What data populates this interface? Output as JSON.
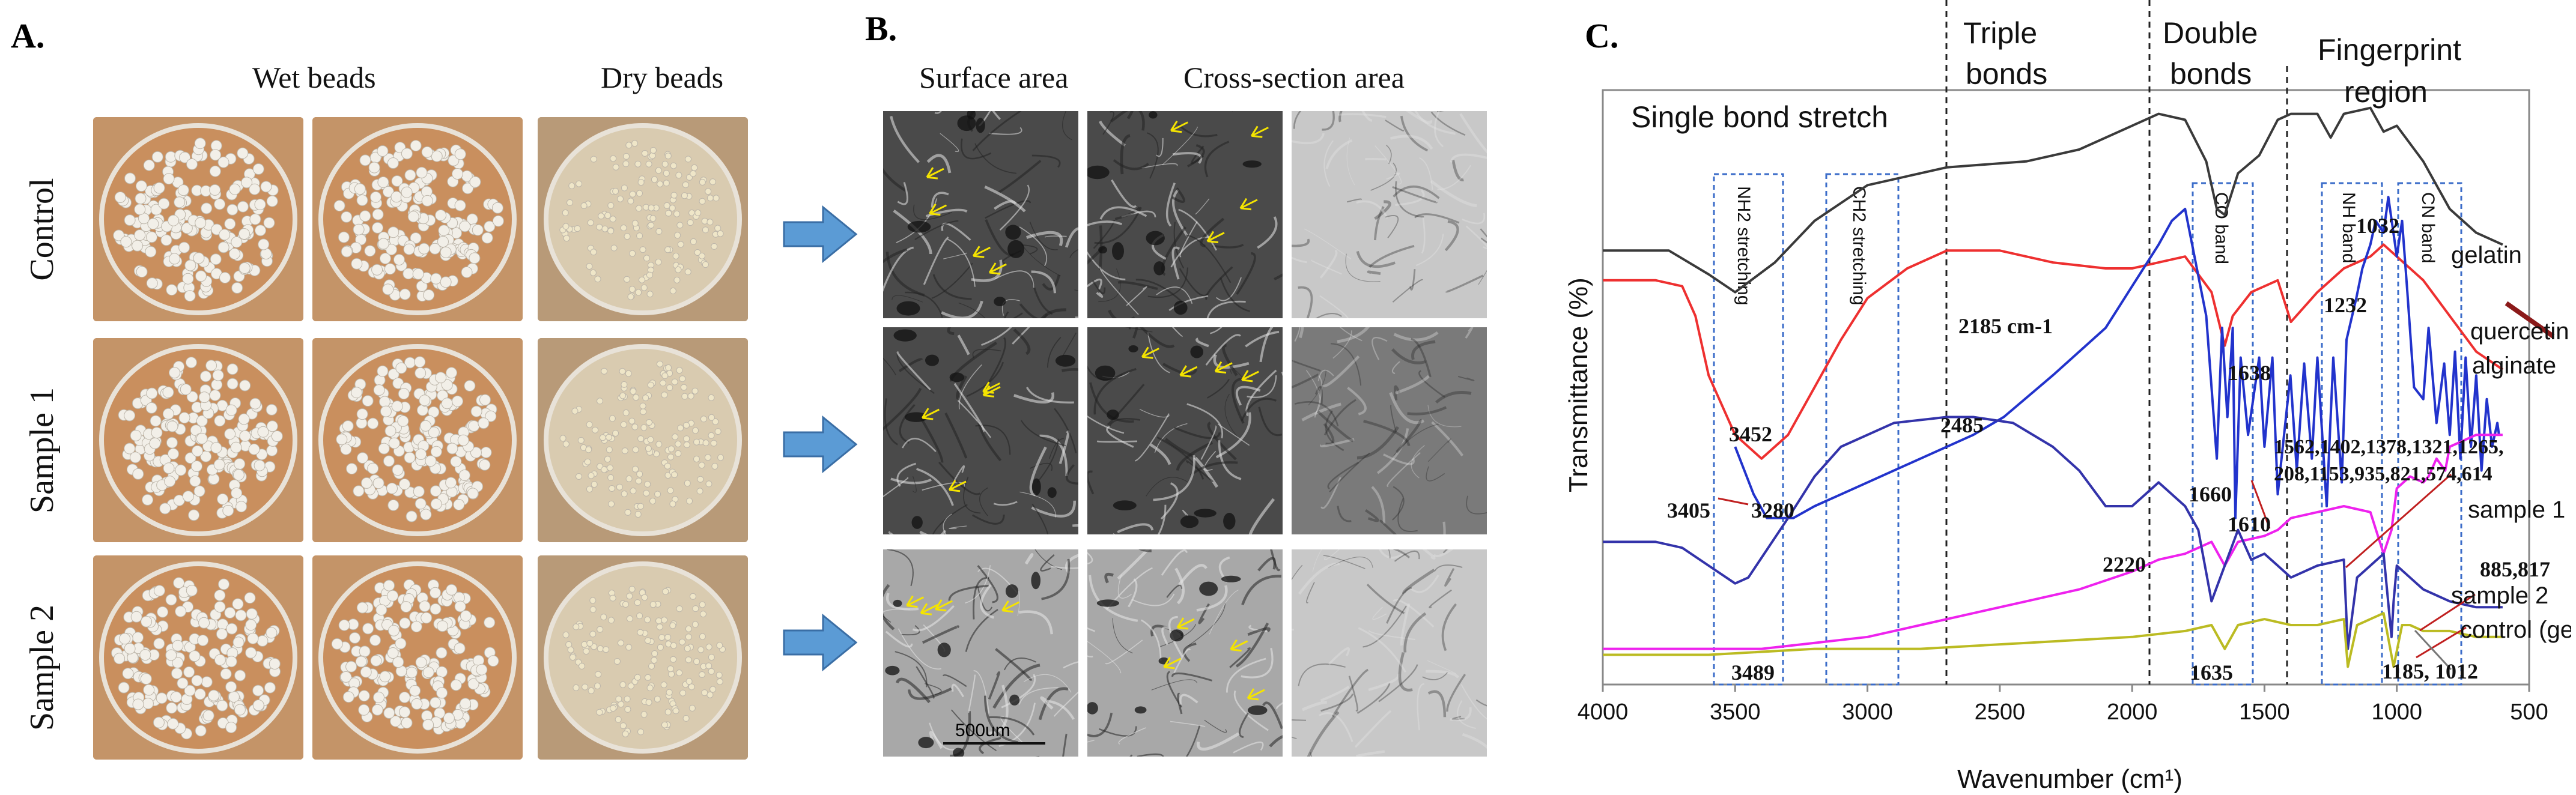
{
  "panelA": {
    "letter": "A.",
    "col_headers": [
      "Wet beads",
      "Dry beads"
    ],
    "row_labels": [
      "Control",
      "Sample 1",
      "Sample 2"
    ]
  },
  "panelB": {
    "letter": "B.",
    "col_headers": [
      "Surface area",
      "Cross-section area"
    ],
    "scale_label": "500um"
  },
  "panelC": {
    "letter": "C.",
    "region_labels": {
      "single": "Single bond stretch",
      "triple_1": "Triple",
      "triple_2": "bonds",
      "double_1": "Double",
      "double_2": "bonds",
      "finger_1": "Fingerprint",
      "finger_2": "region"
    },
    "band_labels": [
      "NH2 stretching",
      "CH2 stretching",
      "CO band",
      "NH band",
      "CN band"
    ],
    "peak_labels": [
      "3452",
      "3405",
      "3280",
      "2485",
      "2185 cm-1",
      "1638",
      "1660",
      "1610",
      "1032",
      "1232",
      "2220",
      "3489",
      "1635",
      "1185, 1012",
      "885,817"
    ],
    "multi_peak_line1": "1562,1402,1378,1321,1265,",
    "multi_peak_line2": "208,1153,935,821,574,614",
    "series_labels": [
      "gelatin",
      "quercetin",
      "alginate",
      "sample 1",
      "sample 2",
      "control (gel-alg)"
    ],
    "colors": {
      "gelatin": "#3a3a3a",
      "quercetin": "#2233cc",
      "alginate": "#ee3030",
      "sample1": "#ee22ee",
      "sample2": "#3333aa",
      "control": "#bbbb22",
      "callout": "#8b1a1a"
    }
  },
  "chart_data": {
    "type": "line",
    "xlabel": "Wavenumber (cm¹)",
    "ylabel": "Transmittance (%)",
    "xlim": [
      4000,
      500
    ],
    "x_ticks": [
      "4000",
      "3500",
      "3000",
      "2500",
      "2000",
      "1500",
      "1000",
      "500"
    ],
    "x_tick_values": [
      4000,
      3500,
      3000,
      2500,
      2000,
      1500,
      1000,
      500
    ],
    "ylim": [
      0,
      100
    ],
    "grid": false,
    "series": [
      {
        "name": "gelatin",
        "x": [
          4000,
          3750,
          3600,
          3500,
          3350,
          3200,
          3000,
          2700,
          2400,
          2200,
          2000,
          1900,
          1800,
          1720,
          1680,
          1650,
          1600,
          1520,
          1450,
          1400,
          1300,
          1250,
          1200,
          1100,
          1050,
          1000,
          900,
          800,
          700,
          600
        ],
        "y": [
          73,
          73,
          69,
          66,
          71,
          78,
          84,
          87,
          88,
          90,
          94,
          96,
          95,
          88,
          80,
          79,
          86,
          89,
          95,
          96,
          96,
          92,
          96,
          97,
          93,
          94,
          88,
          80,
          76,
          74
        ]
      },
      {
        "name": "alginate",
        "x": [
          4000,
          3800,
          3700,
          3650,
          3600,
          3500,
          3400,
          3300,
          3200,
          3100,
          3000,
          2850,
          2700,
          2500,
          2300,
          2100,
          2000,
          1900,
          1800,
          1700,
          1650,
          1620,
          1550,
          1450,
          1400,
          1300,
          1200,
          1100,
          1050,
          1000,
          900,
          800,
          700,
          600
        ],
        "y": [
          68,
          68,
          67,
          62,
          52,
          42,
          38,
          42,
          50,
          58,
          65,
          70,
          73,
          73,
          71,
          70,
          70,
          71,
          72,
          66,
          57,
          62,
          66,
          68,
          61,
          66,
          70,
          72,
          74,
          72,
          68,
          62,
          56,
          53
        ]
      },
      {
        "name": "quercetin",
        "x": [
          3500,
          3430,
          3380,
          3280,
          3200,
          3000,
          2800,
          2600,
          2485,
          2300,
          2100,
          2000,
          1900,
          1850,
          1800,
          1720,
          1680,
          1660,
          1640,
          1620,
          1610,
          1590,
          1562,
          1520,
          1500,
          1470,
          1450,
          1402,
          1378,
          1350,
          1321,
          1300,
          1265,
          1240,
          1208,
          1190,
          1153,
          1130,
          1100,
          1080,
          1050,
          1032,
          1000,
          980,
          960,
          935,
          900,
          880,
          850,
          821,
          800,
          780,
          760,
          740,
          720,
          700,
          680,
          660,
          640,
          620,
          614
        ],
        "y": [
          40,
          32,
          28,
          28,
          30,
          34,
          38,
          42,
          45,
          52,
          60,
          67,
          74,
          78,
          80,
          62,
          38,
          60,
          45,
          60,
          28,
          55,
          42,
          55,
          40,
          55,
          32,
          52,
          36,
          54,
          38,
          55,
          30,
          55,
          34,
          58,
          65,
          70,
          74,
          78,
          76,
          82,
          72,
          78,
          66,
          50,
          48,
          60,
          44,
          54,
          42,
          56,
          38,
          55,
          40,
          52,
          36,
          48,
          40,
          44,
          42
        ]
      },
      {
        "name": "sample 1",
        "x": [
          4000,
          3800,
          3600,
          3400,
          3200,
          3000,
          2800,
          2600,
          2400,
          2200,
          2000,
          1900,
          1800,
          1700,
          1650,
          1600,
          1500,
          1450,
          1400,
          1300,
          1200,
          1100,
          1050,
          1020,
          1000,
          950,
          900,
          880,
          850,
          817,
          800,
          700,
          600
        ],
        "y": [
          6,
          6,
          6,
          6,
          7,
          8,
          10,
          12,
          14,
          16,
          19,
          21,
          22,
          24,
          20,
          24,
          25,
          26,
          28,
          29,
          30,
          29,
          22,
          26,
          33,
          35,
          34,
          35,
          38,
          36,
          40,
          42,
          42
        ]
      },
      {
        "name": "sample 2",
        "x": [
          4000,
          3800,
          3700,
          3600,
          3500,
          3450,
          3300,
          3200,
          3100,
          2900,
          2700,
          2600,
          2450,
          2300,
          2200,
          2100,
          2000,
          1950,
          1900,
          1800,
          1750,
          1700,
          1650,
          1600,
          1550,
          1500,
          1450,
          1400,
          1300,
          1200,
          1185,
          1150,
          1100,
          1050,
          1020,
          1012,
          1000,
          950,
          900,
          850,
          800,
          700,
          600
        ],
        "y": [
          24,
          24,
          23,
          20,
          17,
          18,
          28,
          35,
          40,
          44,
          45,
          45,
          44,
          40,
          36,
          30,
          30,
          32,
          34,
          30,
          26,
          14,
          20,
          26,
          21,
          22,
          20,
          18,
          20,
          21,
          6,
          18,
          20,
          22,
          8,
          14,
          20,
          18,
          16,
          15,
          14,
          13,
          13
        ]
      },
      {
        "name": "control (gel-alg)",
        "x": [
          4000,
          3600,
          3200,
          2800,
          2400,
          2000,
          1800,
          1700,
          1650,
          1600,
          1500,
          1400,
          1300,
          1200,
          1185,
          1150,
          1100,
          1050,
          1012,
          980,
          950,
          900,
          800,
          700,
          600
        ],
        "y": [
          5,
          5,
          6,
          6,
          7,
          8,
          9,
          10,
          6,
          10,
          11,
          10,
          10,
          11,
          3,
          10,
          11,
          12,
          3,
          10,
          10,
          9,
          9,
          8,
          8
        ]
      }
    ]
  }
}
